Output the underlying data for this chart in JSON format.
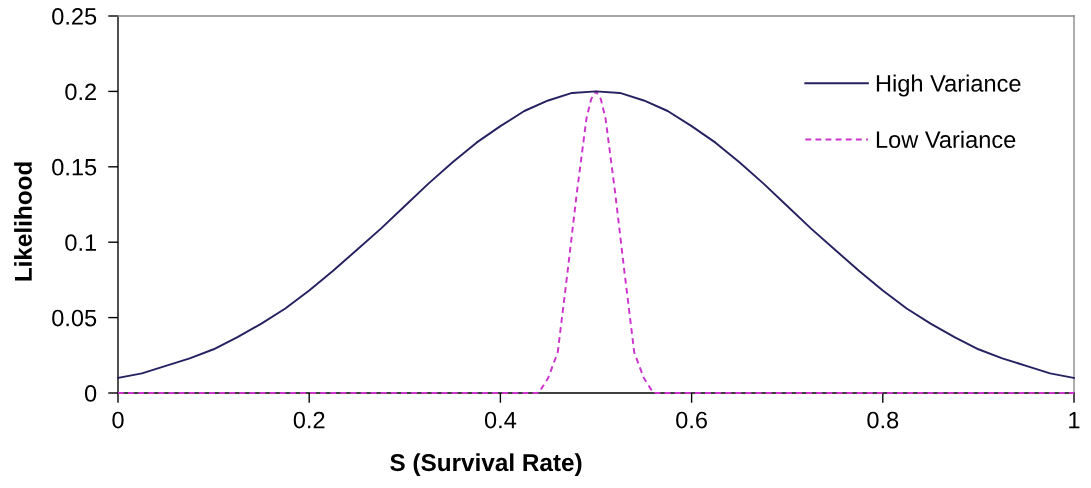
{
  "chart_data": {
    "type": "line",
    "xlabel": "S (Survival Rate)",
    "ylabel": "Likelihood",
    "xlim": [
      0,
      1
    ],
    "ylim": [
      0,
      0.25
    ],
    "xticks": [
      0,
      0.2,
      0.4,
      0.6,
      0.8,
      1
    ],
    "yticks": [
      0,
      0.05,
      0.1,
      0.15,
      0.2,
      0.25
    ],
    "grid": false,
    "legend": "top right",
    "marker": "none",
    "series": [
      {
        "name": "High Variance",
        "color": "#262262",
        "line_style": "solid",
        "x": [
          0,
          0.025,
          0.05,
          0.075,
          0.1,
          0.125,
          0.15,
          0.175,
          0.2,
          0.225,
          0.25,
          0.275,
          0.3,
          0.325,
          0.35,
          0.375,
          0.4,
          0.425,
          0.45,
          0.475,
          0.5,
          0.525,
          0.55,
          0.575,
          0.6,
          0.625,
          0.65,
          0.675,
          0.7,
          0.725,
          0.75,
          0.775,
          0.8,
          0.825,
          0.85,
          0.875,
          0.9,
          0.925,
          0.95,
          0.975,
          1
        ],
        "values": [
          0.01,
          0.013,
          0.018,
          0.023,
          0.029,
          0.037,
          0.046,
          0.056,
          0.068,
          0.081,
          0.095,
          0.109,
          0.124,
          0.139,
          0.153,
          0.166,
          0.177,
          0.187,
          0.194,
          0.199,
          0.2,
          0.199,
          0.194,
          0.187,
          0.177,
          0.166,
          0.153,
          0.139,
          0.124,
          0.109,
          0.095,
          0.081,
          0.068,
          0.056,
          0.046,
          0.037,
          0.029,
          0.023,
          0.018,
          0.013,
          0.01
        ]
      },
      {
        "name": "Low Variance",
        "color": "#cc33cc",
        "line_style": "dashed",
        "x": [
          0,
          0.44,
          0.45,
          0.46,
          0.47,
          0.48,
          0.49,
          0.495,
          0.5,
          0.505,
          0.51,
          0.52,
          0.53,
          0.54,
          0.55,
          0.56,
          1
        ],
        "values": [
          0,
          0,
          0.01,
          0.027,
          0.079,
          0.133,
          0.182,
          0.195,
          0.2,
          0.195,
          0.182,
          0.133,
          0.079,
          0.027,
          0.01,
          0,
          0
        ]
      }
    ]
  }
}
